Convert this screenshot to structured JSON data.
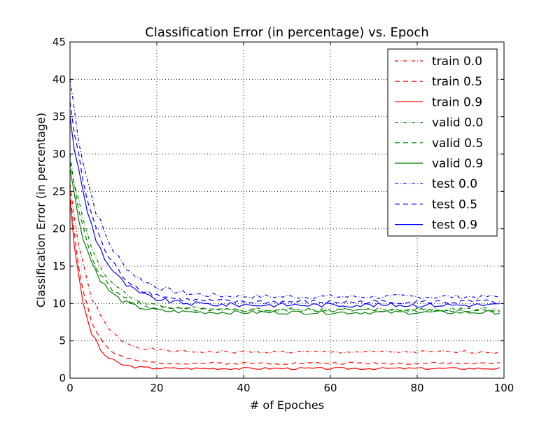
{
  "chart_data": {
    "type": "line",
    "title": "Classification Error (in percentage) vs. Epoch",
    "xlabel": "# of Epoches",
    "ylabel": "Classification Error (in percentage)",
    "xlim": [
      0,
      100
    ],
    "ylim": [
      0,
      45
    ],
    "xticks": [
      0,
      20,
      40,
      60,
      80,
      100
    ],
    "yticks": [
      0,
      5,
      10,
      15,
      20,
      25,
      30,
      35,
      40,
      45
    ],
    "grid": true,
    "legend_position": "top-right",
    "series": [
      {
        "name": "train 0.0",
        "color": "#ff0000",
        "style": "dashdot",
        "start": 26,
        "floor": 3.5,
        "tau": 4.5,
        "amp": 0.18,
        "seed": 1
      },
      {
        "name": "train 0.5",
        "color": "#ff0000",
        "style": "dashed",
        "start": 25,
        "floor": 2.0,
        "tau": 3.6,
        "amp": 0.15,
        "seed": 2
      },
      {
        "name": "train 0.9",
        "color": "#ff0000",
        "style": "solid",
        "start": 24,
        "floor": 1.3,
        "tau": 3.2,
        "amp": 0.15,
        "seed": 3
      },
      {
        "name": "valid 0.0",
        "color": "#008000",
        "style": "dashdot",
        "start": 30,
        "floor": 9.2,
        "tau": 5.5,
        "amp": 0.25,
        "seed": 4
      },
      {
        "name": "valid 0.5",
        "color": "#008000",
        "style": "dashed",
        "start": 29,
        "floor": 9.1,
        "tau": 5.0,
        "amp": 0.25,
        "seed": 5
      },
      {
        "name": "valid 0.9",
        "color": "#008000",
        "style": "solid",
        "start": 28,
        "floor": 8.8,
        "tau": 4.8,
        "amp": 0.25,
        "seed": 6
      },
      {
        "name": "test 0.0",
        "color": "#0000ff",
        "style": "dashdot",
        "start": 40,
        "floor": 10.9,
        "tau": 6.5,
        "amp": 0.3,
        "seed": 7
      },
      {
        "name": "test 0.5",
        "color": "#0000ff",
        "style": "dashed",
        "start": 37,
        "floor": 10.2,
        "tau": 6.0,
        "amp": 0.3,
        "seed": 8
      },
      {
        "name": "test 0.9",
        "color": "#0000ff",
        "style": "solid",
        "start": 35,
        "floor": 9.8,
        "tau": 5.8,
        "amp": 0.3,
        "seed": 9
      }
    ]
  }
}
